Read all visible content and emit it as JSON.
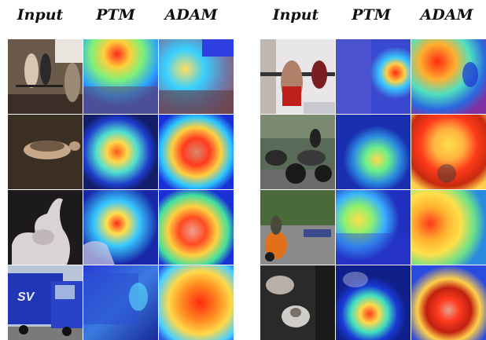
{
  "headers": {
    "left": [
      "Input",
      "PTM",
      "ADAM"
    ],
    "right": [
      "Input",
      "PTM",
      "ADAM"
    ]
  },
  "panels": {
    "left": [
      {
        "input": "gym-weightlifting-scene",
        "ptm": "heatmap-overlay",
        "adam": "heatmap-overlay"
      },
      {
        "input": "mouse-lying-on-ground",
        "ptm": "heatmap-overlay",
        "adam": "heatmap-overlay"
      },
      {
        "input": "white-wrist-sculpture",
        "ptm": "heatmap-overlay",
        "adam": "heatmap-overlay"
      },
      {
        "input": "blue-lorry-truck",
        "ptm": "heatmap-overlay",
        "adam": "heatmap-overlay"
      }
    ],
    "right": [
      {
        "input": "barbell-squat-athlete",
        "ptm": "heatmap-overlay",
        "adam": "heatmap-overlay"
      },
      {
        "input": "motorcycle-riders",
        "ptm": "heatmap-overlay",
        "adam": "heatmap-overlay"
      },
      {
        "input": "scooter-street-parade",
        "ptm": "heatmap-overlay",
        "adam": "heatmap-overlay"
      },
      {
        "input": "white-mushroom-closeup",
        "ptm": "heatmap-overlay",
        "adam": "heatmap-overlay"
      }
    ]
  },
  "colors": {
    "heat_low": "#1a2fd6",
    "heat_mid": "#2ad0ff",
    "heat_warm": "#ffe14a",
    "heat_hot": "#ff3b1e",
    "heat_peak": "#b00000"
  }
}
